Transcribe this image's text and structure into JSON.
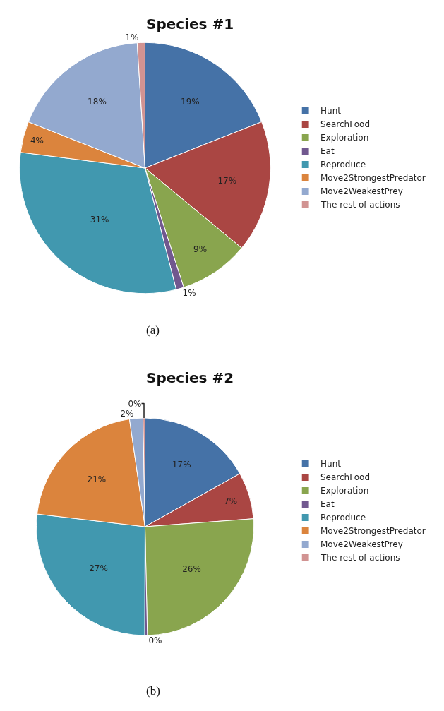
{
  "chart_data": [
    {
      "type": "pie",
      "title": "Species #1",
      "categories": [
        "Hunt",
        "SearchFood",
        "Exploration",
        "Eat",
        "Reproduce",
        "Move2StrongestPredator",
        "Move2WeakestPrey",
        "The rest of actions"
      ],
      "values": [
        19,
        17,
        9,
        1,
        31,
        4,
        18,
        1
      ],
      "colors": [
        "#4572a7",
        "#aa4643",
        "#89a54e",
        "#71588f",
        "#4198af",
        "#db843d",
        "#93a9cf",
        "#d19392"
      ],
      "value_labels": [
        "19%",
        "17%",
        "9%",
        "1%",
        "31%",
        "4%",
        "18%",
        "1%"
      ],
      "legend": "right",
      "annotations": [
        "(a)"
      ]
    },
    {
      "type": "pie",
      "title": "Species #2",
      "categories": [
        "Hunt",
        "SearchFood",
        "Exploration",
        "Eat",
        "Reproduce",
        "Move2StrongestPredator",
        "Move2WeakestPrey",
        "The rest of actions"
      ],
      "values": [
        17,
        7,
        26,
        0.4,
        27,
        21,
        2,
        0.3
      ],
      "value_labels": [
        "17%",
        "7%",
        "26%",
        "0%",
        "27%",
        "21%",
        "2%",
        "0%"
      ],
      "colors": [
        "#4572a7",
        "#aa4643",
        "#89a54e",
        "#71588f",
        "#4198af",
        "#db843d",
        "#93a9cf",
        "#d19392"
      ],
      "legend": "right",
      "annotations": [
        "(b)"
      ]
    }
  ]
}
